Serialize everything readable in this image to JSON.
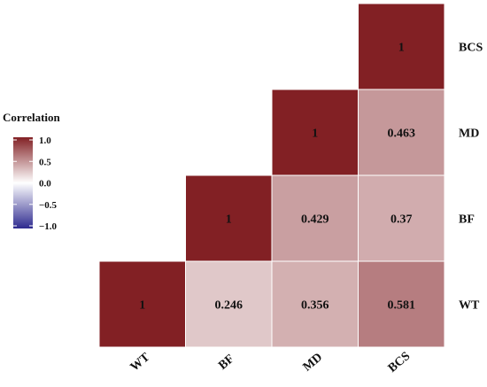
{
  "chart_data": {
    "type": "heatmap",
    "variables": [
      "WT",
      "BF",
      "MD",
      "BCS"
    ],
    "x_labels": [
      "WT",
      "BF",
      "MD",
      "BCS"
    ],
    "y_labels": [
      "WT",
      "BF",
      "MD",
      "BCS"
    ],
    "cells": [
      {
        "row": "WT",
        "col": "WT",
        "value": 1,
        "label": "1"
      },
      {
        "row": "WT",
        "col": "BF",
        "value": 0.246,
        "label": "0.246"
      },
      {
        "row": "WT",
        "col": "MD",
        "value": 0.356,
        "label": "0.356"
      },
      {
        "row": "WT",
        "col": "BCS",
        "value": 0.581,
        "label": "0.581"
      },
      {
        "row": "BF",
        "col": "BF",
        "value": 1,
        "label": "1"
      },
      {
        "row": "BF",
        "col": "MD",
        "value": 0.429,
        "label": "0.429"
      },
      {
        "row": "BF",
        "col": "BCS",
        "value": 0.37,
        "label": "0.37"
      },
      {
        "row": "MD",
        "col": "MD",
        "value": 1,
        "label": "1"
      },
      {
        "row": "MD",
        "col": "BCS",
        "value": 0.463,
        "label": "0.463"
      },
      {
        "row": "BCS",
        "col": "BCS",
        "value": 1,
        "label": "1"
      }
    ],
    "legend": {
      "title": "Correlation",
      "ticks": [
        {
          "value": 1.0,
          "label": "1.0"
        },
        {
          "value": 0.5,
          "label": "0.5"
        },
        {
          "value": 0.0,
          "label": "0.0"
        },
        {
          "value": -0.5,
          "label": "−0.5"
        },
        {
          "value": -1.0,
          "label": "−1.0"
        }
      ],
      "range": [
        -1,
        1
      ],
      "placement": "left"
    },
    "colors": {
      "high": "#822024",
      "mid": "#ffffff",
      "low": "#2e2a8f",
      "cell_border": "#ffffff"
    },
    "grid": false
  }
}
